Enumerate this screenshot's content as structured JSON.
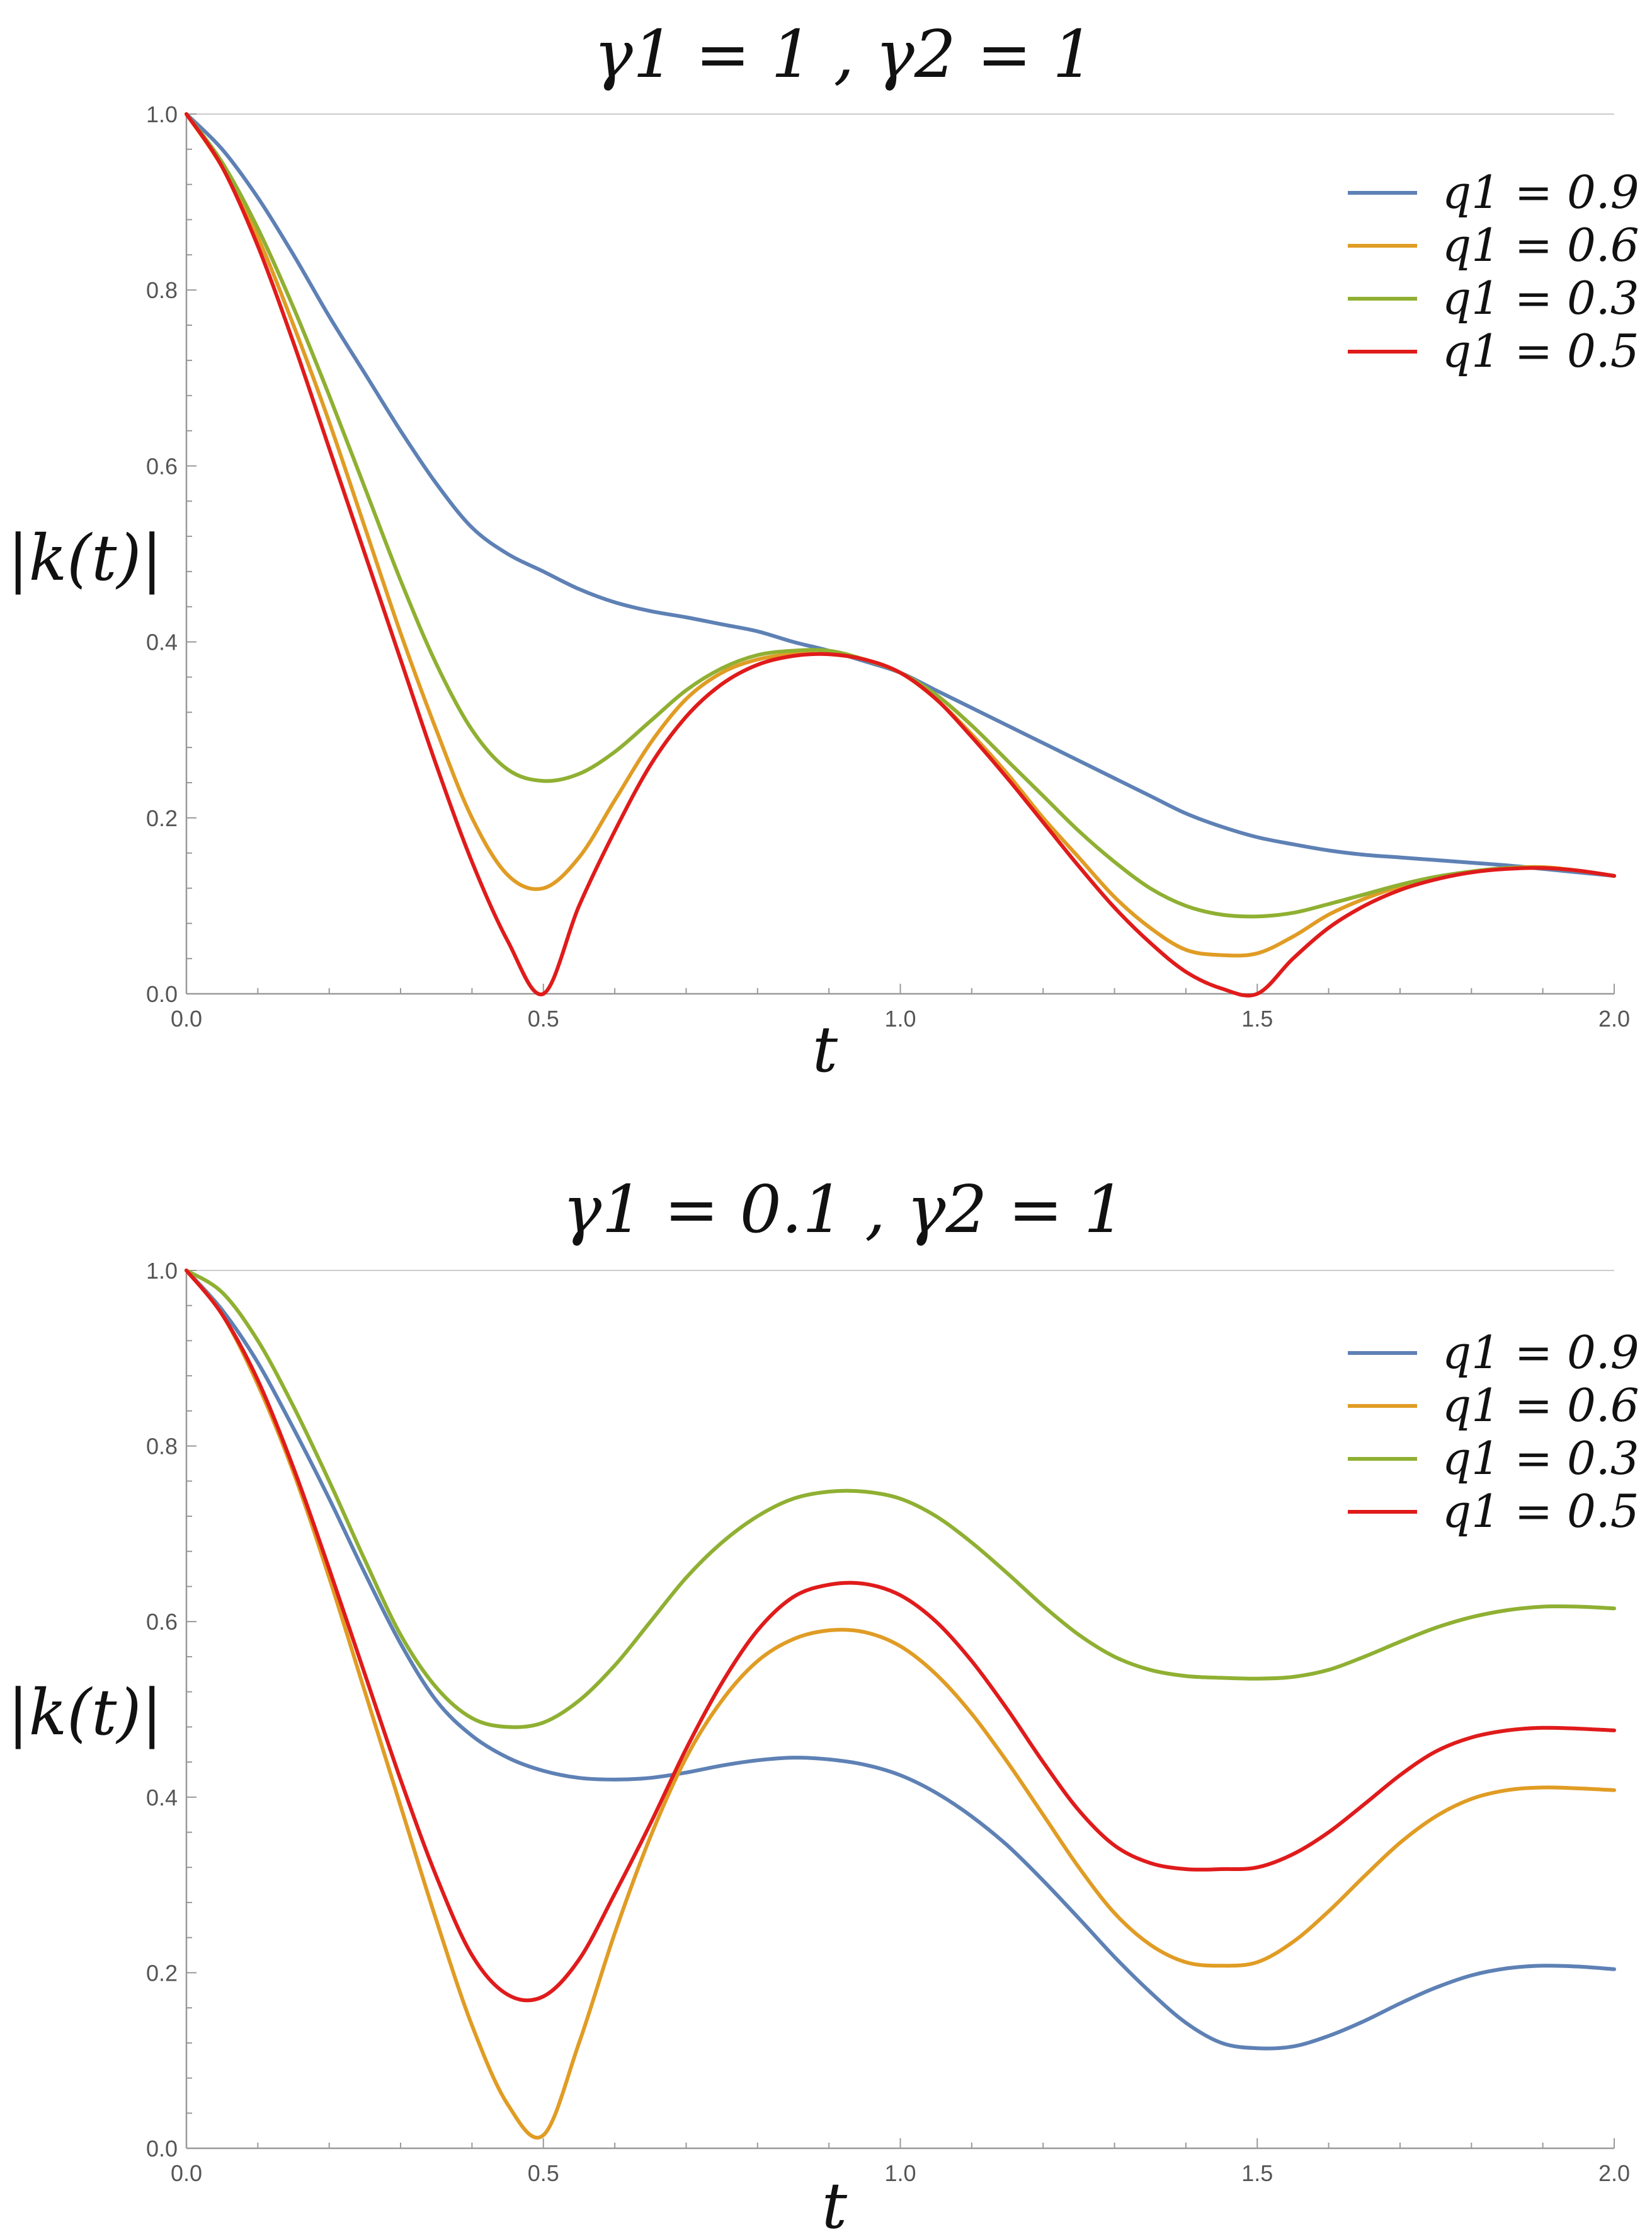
{
  "chart_data": [
    {
      "type": "line",
      "title": "γ1 = 1 ,   γ2 = 1",
      "xlabel": "t",
      "ylabel": "|k(t)|",
      "xlim": [
        0,
        2
      ],
      "ylim": [
        0,
        1
      ],
      "x_ticks": [
        "0.0",
        "0.5",
        "1.0",
        "1.5",
        "2.0"
      ],
      "y_ticks": [
        "0.0",
        "0.2",
        "0.4",
        "0.6",
        "0.8",
        "1.0"
      ],
      "grid": false,
      "legend_position": "top-right",
      "series": [
        {
          "name": "q1 = 0.9",
          "color": "#5E81B5",
          "x": [
            0,
            0.05,
            0.1,
            0.15,
            0.2,
            0.25,
            0.3,
            0.35,
            0.4,
            0.45,
            0.5,
            0.55,
            0.6,
            0.65,
            0.7,
            0.75,
            0.8,
            0.85,
            0.9,
            0.95,
            1.0,
            1.05,
            1.1,
            1.15,
            1.2,
            1.25,
            1.3,
            1.35,
            1.4,
            1.45,
            1.5,
            1.55,
            1.6,
            1.65,
            1.7,
            1.75,
            1.8,
            1.85,
            1.9,
            1.95,
            2.0
          ],
          "y": [
            1.0,
            0.96,
            0.905,
            0.84,
            0.77,
            0.705,
            0.64,
            0.58,
            0.53,
            0.5,
            0.48,
            0.46,
            0.445,
            0.435,
            0.428,
            0.42,
            0.412,
            0.4,
            0.39,
            0.378,
            0.365,
            0.345,
            0.325,
            0.305,
            0.285,
            0.265,
            0.245,
            0.225,
            0.205,
            0.19,
            0.178,
            0.17,
            0.163,
            0.158,
            0.155,
            0.152,
            0.149,
            0.146,
            0.142,
            0.138,
            0.134
          ]
        },
        {
          "name": "q1 = 0.6",
          "color": "#E09C24",
          "x": [
            0,
            0.05,
            0.1,
            0.15,
            0.2,
            0.25,
            0.3,
            0.35,
            0.4,
            0.45,
            0.5,
            0.55,
            0.6,
            0.65,
            0.7,
            0.75,
            0.8,
            0.85,
            0.9,
            0.95,
            1.0,
            1.05,
            1.1,
            1.15,
            1.2,
            1.25,
            1.3,
            1.35,
            1.4,
            1.45,
            1.5,
            1.55,
            1.6,
            1.65,
            1.7,
            1.75,
            1.8,
            1.85,
            1.9,
            1.95,
            2.0
          ],
          "y": [
            1.0,
            0.94,
            0.86,
            0.76,
            0.65,
            0.53,
            0.41,
            0.3,
            0.2,
            0.135,
            0.12,
            0.155,
            0.22,
            0.285,
            0.335,
            0.365,
            0.38,
            0.386,
            0.386,
            0.38,
            0.365,
            0.335,
            0.295,
            0.25,
            0.2,
            0.155,
            0.11,
            0.075,
            0.05,
            0.044,
            0.046,
            0.065,
            0.09,
            0.108,
            0.122,
            0.132,
            0.139,
            0.143,
            0.144,
            0.14,
            0.134
          ]
        },
        {
          "name": "q1 = 0.3",
          "color": "#8FB032",
          "x": [
            0,
            0.05,
            0.1,
            0.15,
            0.2,
            0.25,
            0.3,
            0.35,
            0.4,
            0.45,
            0.5,
            0.55,
            0.6,
            0.65,
            0.7,
            0.75,
            0.8,
            0.85,
            0.9,
            0.95,
            1.0,
            1.05,
            1.1,
            1.15,
            1.2,
            1.25,
            1.3,
            1.35,
            1.4,
            1.45,
            1.5,
            1.55,
            1.6,
            1.65,
            1.7,
            1.75,
            1.8,
            1.85,
            1.9,
            1.95,
            2.0
          ],
          "y": [
            1.0,
            0.945,
            0.87,
            0.78,
            0.68,
            0.575,
            0.47,
            0.375,
            0.3,
            0.255,
            0.242,
            0.25,
            0.275,
            0.31,
            0.345,
            0.37,
            0.385,
            0.39,
            0.39,
            0.38,
            0.365,
            0.34,
            0.305,
            0.265,
            0.225,
            0.185,
            0.15,
            0.12,
            0.1,
            0.09,
            0.088,
            0.092,
            0.102,
            0.113,
            0.124,
            0.133,
            0.139,
            0.143,
            0.143,
            0.14,
            0.134
          ]
        },
        {
          "name": "q1 = 0.5",
          "color": "#E01B1B",
          "x": [
            0,
            0.05,
            0.1,
            0.15,
            0.2,
            0.25,
            0.3,
            0.35,
            0.4,
            0.45,
            0.5,
            0.55,
            0.6,
            0.65,
            0.7,
            0.75,
            0.8,
            0.85,
            0.9,
            0.95,
            1.0,
            1.05,
            1.1,
            1.15,
            1.2,
            1.25,
            1.3,
            1.35,
            1.4,
            1.45,
            1.5,
            1.55,
            1.6,
            1.65,
            1.7,
            1.75,
            1.8,
            1.85,
            1.9,
            1.95,
            2.0
          ],
          "y": [
            1.0,
            0.94,
            0.85,
            0.74,
            0.62,
            0.5,
            0.38,
            0.26,
            0.15,
            0.06,
            0.0,
            0.1,
            0.185,
            0.26,
            0.315,
            0.352,
            0.374,
            0.384,
            0.386,
            0.38,
            0.365,
            0.335,
            0.292,
            0.245,
            0.195,
            0.145,
            0.098,
            0.058,
            0.025,
            0.006,
            0.0,
            0.04,
            0.075,
            0.1,
            0.118,
            0.13,
            0.138,
            0.142,
            0.143,
            0.14,
            0.134
          ]
        }
      ]
    },
    {
      "type": "line",
      "title": "γ1 = 0.1 , γ2 = 1",
      "xlabel": "t",
      "ylabel": "|k(t)|",
      "xlim": [
        0,
        2
      ],
      "ylim": [
        0,
        1
      ],
      "x_ticks": [
        "0.0",
        "0.5",
        "1.0",
        "1.5",
        "2.0"
      ],
      "y_ticks": [
        "0.0",
        "0.2",
        "0.4",
        "0.6",
        "0.8",
        "1.0"
      ],
      "grid": false,
      "legend_position": "top-right",
      "series": [
        {
          "name": "q1 = 0.9",
          "color": "#5E81B5",
          "x": [
            0,
            0.05,
            0.1,
            0.15,
            0.2,
            0.25,
            0.3,
            0.35,
            0.4,
            0.45,
            0.5,
            0.55,
            0.6,
            0.65,
            0.7,
            0.75,
            0.8,
            0.85,
            0.9,
            0.95,
            1.0,
            1.05,
            1.1,
            1.15,
            1.2,
            1.25,
            1.3,
            1.35,
            1.4,
            1.45,
            1.5,
            1.55,
            1.6,
            1.65,
            1.7,
            1.75,
            1.8,
            1.85,
            1.9,
            1.95,
            2.0
          ],
          "y": [
            1.0,
            0.955,
            0.895,
            0.82,
            0.74,
            0.655,
            0.575,
            0.51,
            0.47,
            0.445,
            0.43,
            0.422,
            0.42,
            0.422,
            0.428,
            0.436,
            0.442,
            0.445,
            0.443,
            0.437,
            0.425,
            0.405,
            0.378,
            0.345,
            0.305,
            0.262,
            0.218,
            0.178,
            0.143,
            0.12,
            0.114,
            0.116,
            0.128,
            0.145,
            0.165,
            0.183,
            0.197,
            0.205,
            0.208,
            0.207,
            0.204
          ]
        },
        {
          "name": "q1 = 0.6",
          "color": "#E09C24",
          "x": [
            0,
            0.05,
            0.1,
            0.15,
            0.2,
            0.25,
            0.3,
            0.35,
            0.4,
            0.45,
            0.5,
            0.55,
            0.6,
            0.65,
            0.7,
            0.75,
            0.8,
            0.85,
            0.9,
            0.95,
            1.0,
            1.05,
            1.1,
            1.15,
            1.2,
            1.25,
            1.3,
            1.35,
            1.4,
            1.45,
            1.5,
            1.55,
            1.6,
            1.65,
            1.7,
            1.75,
            1.8,
            1.85,
            1.9,
            1.95,
            2.0
          ],
          "y": [
            1.0,
            0.95,
            0.87,
            0.77,
            0.65,
            0.52,
            0.39,
            0.26,
            0.14,
            0.05,
            0.015,
            0.12,
            0.245,
            0.355,
            0.445,
            0.51,
            0.555,
            0.58,
            0.59,
            0.588,
            0.572,
            0.54,
            0.495,
            0.44,
            0.38,
            0.32,
            0.268,
            0.232,
            0.212,
            0.208,
            0.212,
            0.235,
            0.27,
            0.31,
            0.348,
            0.378,
            0.398,
            0.408,
            0.411,
            0.41,
            0.408
          ]
        },
        {
          "name": "q1 = 0.3",
          "color": "#8FB032",
          "x": [
            0,
            0.05,
            0.1,
            0.15,
            0.2,
            0.25,
            0.3,
            0.35,
            0.4,
            0.45,
            0.5,
            0.55,
            0.6,
            0.65,
            0.7,
            0.75,
            0.8,
            0.85,
            0.9,
            0.95,
            1.0,
            1.05,
            1.1,
            1.15,
            1.2,
            1.25,
            1.3,
            1.35,
            1.4,
            1.45,
            1.5,
            1.55,
            1.6,
            1.65,
            1.7,
            1.75,
            1.8,
            1.85,
            1.9,
            1.95,
            2.0
          ],
          "y": [
            1.0,
            0.975,
            0.92,
            0.845,
            0.76,
            0.67,
            0.585,
            0.525,
            0.49,
            0.48,
            0.485,
            0.51,
            0.55,
            0.6,
            0.65,
            0.69,
            0.72,
            0.74,
            0.748,
            0.748,
            0.74,
            0.72,
            0.69,
            0.655,
            0.618,
            0.585,
            0.56,
            0.545,
            0.538,
            0.536,
            0.535,
            0.537,
            0.545,
            0.56,
            0.577,
            0.593,
            0.605,
            0.613,
            0.617,
            0.617,
            0.615
          ]
        },
        {
          "name": "q1 = 0.5",
          "color": "#E01B1B",
          "x": [
            0,
            0.05,
            0.1,
            0.15,
            0.2,
            0.25,
            0.3,
            0.35,
            0.4,
            0.45,
            0.5,
            0.55,
            0.6,
            0.65,
            0.7,
            0.75,
            0.8,
            0.85,
            0.9,
            0.95,
            1.0,
            1.05,
            1.1,
            1.15,
            1.2,
            1.25,
            1.3,
            1.35,
            1.4,
            1.45,
            1.5,
            1.55,
            1.6,
            1.65,
            1.7,
            1.75,
            1.8,
            1.85,
            1.9,
            1.95,
            2.0
          ],
          "y": [
            1.0,
            0.95,
            0.875,
            0.775,
            0.66,
            0.54,
            0.42,
            0.31,
            0.22,
            0.175,
            0.173,
            0.215,
            0.29,
            0.37,
            0.455,
            0.53,
            0.59,
            0.628,
            0.642,
            0.643,
            0.63,
            0.6,
            0.555,
            0.5,
            0.44,
            0.385,
            0.345,
            0.325,
            0.318,
            0.318,
            0.32,
            0.335,
            0.36,
            0.392,
            0.425,
            0.452,
            0.468,
            0.476,
            0.479,
            0.478,
            0.476
          ]
        }
      ]
    }
  ]
}
